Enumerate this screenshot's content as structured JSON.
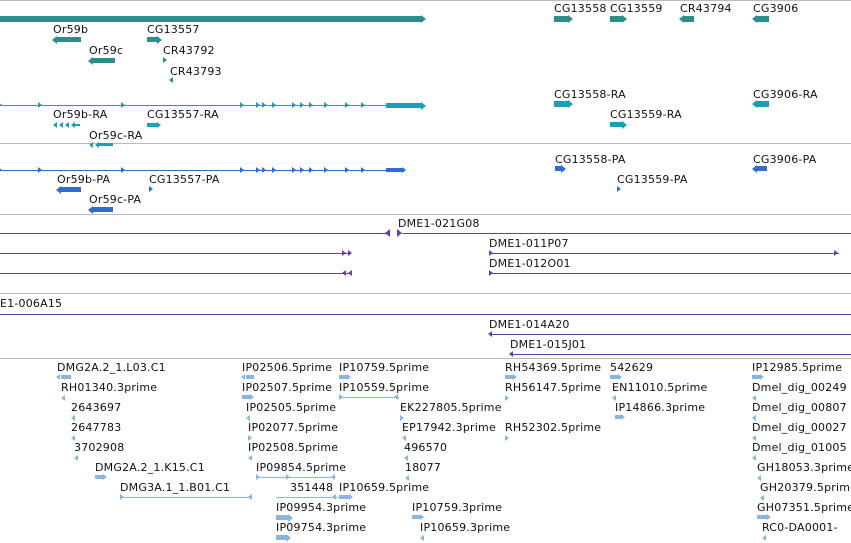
{
  "colors": {
    "gene": "#2f8c8c",
    "mrna": "#1a9fb8",
    "protein": "#2f6bd0",
    "clone": "#6a3fa8",
    "est": "#8ab6de",
    "divider": "#bbbbbb"
  },
  "tracks": {
    "gene": {
      "labels": [
        "Or59b",
        "Or59c",
        "CG13557",
        "CR43792",
        "CR43793",
        "CG13558",
        "CG13559",
        "CR43794",
        "CG3906"
      ]
    },
    "mrna": {
      "labels": [
        "Or59b-RA",
        "Or59c-RA",
        "CG13557-RA",
        "CG13558-RA",
        "CG13559-RA",
        "CG3906-RA"
      ]
    },
    "protein": {
      "labels": [
        "Or59b-PA",
        "Or59c-PA",
        "CG13557-PA",
        "CG13558-PA",
        "CG13559-PA",
        "CG3906-PA"
      ]
    },
    "clone": {
      "labels": [
        "DME1-021G08",
        "DME1-011P07",
        "DME1-012O01",
        "E1-006A15",
        "DME1-014A20",
        "DME1-015J01"
      ]
    },
    "est": {
      "labels": [
        "DMG2A.2_1.L03.C1",
        "RH01340.3prime",
        "2643697",
        "2647783",
        "3702908",
        "DMG2A.2_1.K15.C1",
        "DMG3A.1_1.B01.C1",
        "IP02506.5prime",
        "IP02507.5prime",
        "IP02505.5prime",
        "IP02077.5prime",
        "IP02508.5prime",
        "IP09854.5prime",
        "351448",
        "IP09954.3prime",
        "IP09754.3prime",
        "IP10759.5prime",
        "IP10559.5prime",
        "IP10659.5prime",
        "EK227805.5prime",
        "EP17942.3prime",
        "496570",
        "18077",
        "IP10759.3prime",
        "IP10659.3prime",
        "RH54369.5prime",
        "RH56147.5prime",
        "RH52302.5prime",
        "542629",
        "EN11010.5prime",
        "IP14866.3prime",
        "IP12985.5prime",
        "Dmel_dig_00249",
        "Dmel_dig_00807",
        "Dmel_dig_00027",
        "Dmel_dig_01005",
        "GH18053.3prime",
        "GH20379.5prime",
        "GH07351.5prime",
        "RC0-DA0001-"
      ]
    }
  }
}
